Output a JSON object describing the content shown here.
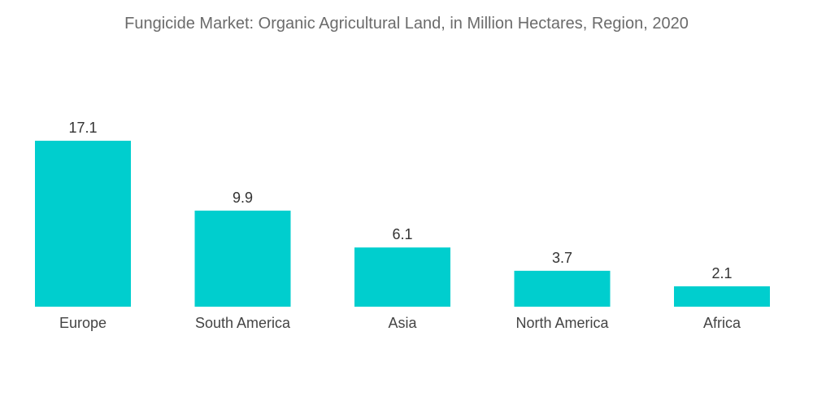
{
  "chart_data": {
    "type": "bar",
    "title": "Fungicide Market: Organic Agricultural Land, in Million Hectares, Region, 2020",
    "categories": [
      "Europe",
      "South America",
      "Asia",
      "North America",
      "Africa"
    ],
    "values": [
      17.1,
      9.9,
      6.1,
      3.7,
      2.1
    ],
    "value_labels": [
      "17.1",
      "9.9",
      "6.1",
      "3.7",
      "2.1"
    ],
    "xlabel": "",
    "ylabel": "",
    "ylim": [
      0,
      17.1
    ],
    "grid": false,
    "legend": "none",
    "colors": {
      "bar": "#00CECE"
    }
  }
}
